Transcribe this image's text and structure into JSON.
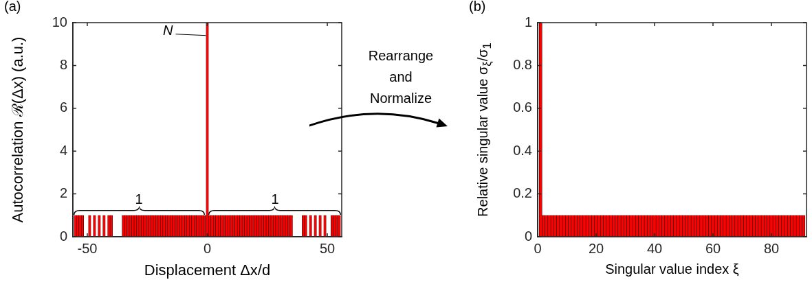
{
  "chart_data": [
    {
      "type": "bar",
      "title": "(a)",
      "xlabel": "Displacement Δx/d",
      "ylabel": "Autocorrelation ℛ(Δx) (a.u.)",
      "color": "#ff0000",
      "x": [
        -55,
        -54,
        -53,
        -52,
        -49,
        -47,
        -45,
        -43,
        -41,
        -40,
        -35,
        -34,
        -33,
        -32,
        -31,
        -30,
        -29,
        -28,
        -27,
        -26,
        -25,
        -24,
        -23,
        -22,
        -21,
        -20,
        -19,
        -18,
        -17,
        -16,
        -15,
        -14,
        -13,
        -12,
        -11,
        -10,
        -9,
        -8,
        -7,
        -6,
        -5,
        -4,
        -3,
        -2,
        -1,
        0,
        1,
        2,
        3,
        4,
        5,
        6,
        7,
        8,
        9,
        10,
        11,
        12,
        13,
        14,
        15,
        16,
        17,
        18,
        19,
        20,
        21,
        22,
        23,
        24,
        25,
        26,
        27,
        28,
        29,
        30,
        31,
        32,
        33,
        34,
        35,
        40,
        41,
        43,
        45,
        47,
        49,
        52,
        53,
        54,
        55
      ],
      "values": [
        1,
        1,
        1,
        1,
        1,
        1,
        1,
        1,
        1,
        1,
        1,
        1,
        1,
        1,
        1,
        1,
        1,
        1,
        1,
        1,
        1,
        1,
        1,
        1,
        1,
        1,
        1,
        1,
        1,
        1,
        1,
        1,
        1,
        1,
        1,
        1,
        1,
        1,
        1,
        1,
        1,
        1,
        1,
        1,
        1,
        10,
        1,
        1,
        1,
        1,
        1,
        1,
        1,
        1,
        1,
        1,
        1,
        1,
        1,
        1,
        1,
        1,
        1,
        1,
        1,
        1,
        1,
        1,
        1,
        1,
        1,
        1,
        1,
        1,
        1,
        1,
        1,
        1,
        1,
        1,
        1,
        1,
        1,
        1,
        1,
        1,
        1,
        1,
        1,
        1,
        1
      ],
      "xlim": [
        -56,
        56
      ],
      "xticks": [
        -50,
        0,
        50
      ],
      "ylim": [
        0,
        10
      ],
      "yticks": [
        0,
        2,
        4,
        6,
        8,
        10
      ],
      "annotations": [
        {
          "text": "N",
          "x": 0,
          "y": 9.4
        },
        "1",
        "1",
        "Rearrange and Normalize"
      ]
    },
    {
      "type": "bar",
      "title": "(b)",
      "xlabel": "Singular value index ξ",
      "ylabel": "Relative singular value σ$_{ξ}$/σ$_{1}$",
      "color": "#ff0000",
      "x": [
        1,
        2,
        3,
        4,
        5,
        6,
        7,
        8,
        9,
        10,
        11,
        12,
        13,
        14,
        15,
        16,
        17,
        18,
        19,
        20,
        21,
        22,
        23,
        24,
        25,
        26,
        27,
        28,
        29,
        30,
        31,
        32,
        33,
        34,
        35,
        36,
        37,
        38,
        39,
        40,
        41,
        42,
        43,
        44,
        45,
        46,
        47,
        48,
        49,
        50,
        51,
        52,
        53,
        54,
        55,
        56,
        57,
        58,
        59,
        60,
        61,
        62,
        63,
        64,
        65,
        66,
        67,
        68,
        69,
        70,
        71,
        72,
        73,
        74,
        75,
        76,
        77,
        78,
        79,
        80,
        81,
        82,
        83,
        84,
        85,
        86,
        87,
        88,
        89,
        90,
        91
      ],
      "values": [
        1,
        0.1,
        0.1,
        0.1,
        0.1,
        0.1,
        0.1,
        0.1,
        0.1,
        0.1,
        0.1,
        0.1,
        0.1,
        0.1,
        0.1,
        0.1,
        0.1,
        0.1,
        0.1,
        0.1,
        0.1,
        0.1,
        0.1,
        0.1,
        0.1,
        0.1,
        0.1,
        0.1,
        0.1,
        0.1,
        0.1,
        0.1,
        0.1,
        0.1,
        0.1,
        0.1,
        0.1,
        0.1,
        0.1,
        0.1,
        0.1,
        0.1,
        0.1,
        0.1,
        0.1,
        0.1,
        0.1,
        0.1,
        0.1,
        0.1,
        0.1,
        0.1,
        0.1,
        0.1,
        0.1,
        0.1,
        0.1,
        0.1,
        0.1,
        0.1,
        0.1,
        0.1,
        0.1,
        0.1,
        0.1,
        0.1,
        0.1,
        0.1,
        0.1,
        0.1,
        0.1,
        0.1,
        0.1,
        0.1,
        0.1,
        0.1,
        0.1,
        0.1,
        0.1,
        0.1,
        0.1,
        0.1,
        0.1,
        0.1,
        0.1,
        0.1,
        0.1,
        0.1,
        0.1,
        0.1,
        0.1
      ],
      "xlim": [
        0,
        92
      ],
      "xticks": [
        0,
        20,
        40,
        60,
        80
      ],
      "ylim": [
        0,
        1
      ],
      "yticks": [
        0,
        0.2,
        0.4,
        0.6,
        0.8,
        1
      ]
    }
  ]
}
